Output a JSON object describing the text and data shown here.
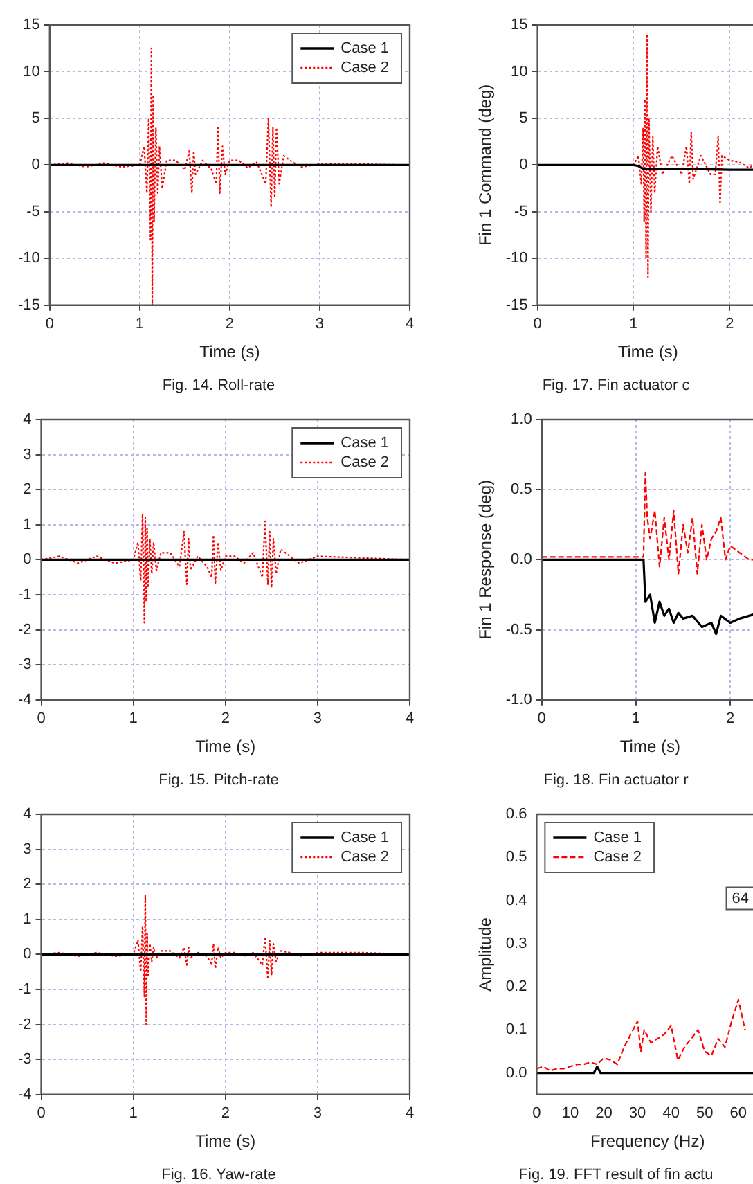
{
  "chart_data": [
    {
      "type": "line",
      "xlim": [
        0,
        4
      ],
      "xticks": [
        0,
        1,
        2,
        3,
        4
      ],
      "ylim": [
        -15,
        15
      ],
      "yticks": [
        -15,
        -10,
        -5,
        0,
        5,
        10,
        15
      ],
      "xlabel": "Time (s)",
      "grid": true,
      "legend": "top right",
      "annotations": [
        "Fig. 14. Roll-rate"
      ],
      "series": [
        {
          "name": "Case 1",
          "color": "#000000",
          "line_style": "solid",
          "x": [
            0,
            0.5,
            1,
            1.5,
            2,
            2.5,
            3,
            3.5,
            4
          ],
          "values": [
            0,
            0,
            0,
            0,
            0,
            0,
            0,
            0,
            0
          ]
        },
        {
          "name": "Case 2",
          "color": "#ff0000",
          "line_style": "dotted",
          "x": [
            0,
            0.2,
            0.4,
            0.6,
            0.8,
            1.0,
            1.05,
            1.08,
            1.1,
            1.12,
            1.13,
            1.14,
            1.15,
            1.16,
            1.18,
            1.2,
            1.22,
            1.25,
            1.3,
            1.4,
            1.5,
            1.55,
            1.58,
            1.6,
            1.62,
            1.7,
            1.8,
            1.85,
            1.87,
            1.89,
            1.92,
            1.95,
            2.0,
            2.1,
            2.2,
            2.3,
            2.4,
            2.43,
            2.46,
            2.48,
            2.5,
            2.52,
            2.55,
            2.6,
            2.7,
            2.8,
            3.0,
            3.5,
            4.0
          ],
          "values": [
            0,
            0.2,
            -0.2,
            0.2,
            -0.2,
            0,
            2,
            -3,
            5,
            -8,
            12.5,
            -15,
            7.5,
            -6,
            4,
            -3,
            2,
            -2.5,
            0.5,
            0.5,
            -0.5,
            1.5,
            -3,
            1.5,
            -1,
            0.5,
            -0.5,
            -2,
            4,
            -3,
            2,
            -1,
            0.5,
            0.5,
            -0.3,
            0.3,
            -2,
            5,
            -4.5,
            4,
            -3.5,
            4,
            -2,
            1,
            0.3,
            -0.2,
            0.1,
            0.1,
            0
          ]
        }
      ]
    },
    {
      "type": "line",
      "xlim": [
        0,
        4
      ],
      "xticks": [
        0,
        1,
        2,
        3,
        4
      ],
      "ylim": [
        -4,
        4
      ],
      "yticks": [
        -4,
        -3,
        -2,
        -1,
        0,
        1,
        2,
        3,
        4
      ],
      "xlabel": "Time (s)",
      "grid": true,
      "legend": "top right",
      "annotations": [
        "Fig. 15. Pitch-rate"
      ],
      "series": [
        {
          "name": "Case 1",
          "color": "#000000",
          "line_style": "solid",
          "x": [
            0,
            0.5,
            1,
            1.5,
            2,
            2.5,
            3,
            3.5,
            4
          ],
          "values": [
            0,
            0,
            0,
            0,
            0,
            0,
            0,
            0,
            0
          ]
        },
        {
          "name": "Case 2",
          "color": "#ff0000",
          "line_style": "dotted",
          "x": [
            0,
            0.2,
            0.4,
            0.6,
            0.8,
            1.0,
            1.05,
            1.08,
            1.1,
            1.12,
            1.13,
            1.14,
            1.15,
            1.16,
            1.18,
            1.2,
            1.22,
            1.25,
            1.3,
            1.4,
            1.5,
            1.55,
            1.58,
            1.6,
            1.62,
            1.7,
            1.8,
            1.85,
            1.87,
            1.89,
            1.92,
            1.95,
            2.0,
            2.1,
            2.2,
            2.3,
            2.4,
            2.43,
            2.46,
            2.48,
            2.5,
            2.52,
            2.55,
            2.6,
            2.7,
            2.8,
            3.0,
            3.5,
            4.0
          ],
          "values": [
            0,
            0.1,
            -0.1,
            0.1,
            -0.1,
            0,
            0.5,
            -0.6,
            1.3,
            -1.8,
            1.2,
            -1.2,
            0.9,
            -0.8,
            0.6,
            -0.4,
            0.5,
            -0.3,
            0.2,
            0.2,
            -0.2,
            0.8,
            -0.7,
            0.6,
            -0.3,
            0.1,
            -0.2,
            -0.5,
            0.7,
            -0.7,
            0.5,
            -0.3,
            0.1,
            0.1,
            -0.1,
            0.2,
            -0.5,
            1.1,
            -0.7,
            0.8,
            -0.8,
            0.6,
            -0.4,
            0.3,
            0.1,
            -0.1,
            0.1,
            0.05,
            0
          ]
        }
      ]
    },
    {
      "type": "line",
      "xlim": [
        0,
        4
      ],
      "xticks": [
        0,
        1,
        2,
        3,
        4
      ],
      "ylim": [
        -4,
        4
      ],
      "yticks": [
        -4,
        -3,
        -2,
        -1,
        0,
        1,
        2,
        3,
        4
      ],
      "xlabel": "Time (s)",
      "grid": true,
      "legend": "top right",
      "annotations": [
        "Fig. 16. Yaw-rate"
      ],
      "series": [
        {
          "name": "Case 1",
          "color": "#000000",
          "line_style": "solid",
          "x": [
            0,
            0.5,
            1,
            1.5,
            2,
            2.5,
            3,
            3.5,
            4
          ],
          "values": [
            0,
            0,
            0,
            0,
            0,
            0,
            0,
            0,
            0
          ]
        },
        {
          "name": "Case 2",
          "color": "#ff0000",
          "line_style": "dotted",
          "x": [
            0,
            0.2,
            0.4,
            0.6,
            0.8,
            1.0,
            1.05,
            1.08,
            1.1,
            1.12,
            1.13,
            1.14,
            1.15,
            1.16,
            1.18,
            1.2,
            1.22,
            1.25,
            1.3,
            1.4,
            1.5,
            1.55,
            1.58,
            1.6,
            1.62,
            1.7,
            1.8,
            1.85,
            1.87,
            1.89,
            1.92,
            1.95,
            2.0,
            2.1,
            2.2,
            2.3,
            2.4,
            2.43,
            2.46,
            2.48,
            2.5,
            2.52,
            2.55,
            2.6,
            2.7,
            2.8,
            3.0,
            3.5,
            4.0
          ],
          "values": [
            0,
            0.05,
            -0.05,
            0.05,
            -0.05,
            0,
            0.4,
            -0.5,
            0.8,
            -1.2,
            1.7,
            -2,
            0.6,
            -0.6,
            0.3,
            -0.2,
            0.2,
            -0.1,
            0.1,
            0.1,
            -0.1,
            0.2,
            -0.3,
            0.2,
            -0.1,
            0.05,
            -0.05,
            -0.3,
            0.3,
            -0.4,
            0.2,
            -0.1,
            0.05,
            0.05,
            -0.05,
            0.05,
            -0.3,
            0.5,
            -0.7,
            0.4,
            -0.6,
            0.3,
            -0.2,
            0.1,
            0.05,
            -0.05,
            0.05,
            0.05,
            0
          ]
        }
      ]
    },
    {
      "type": "line",
      "xlim": [
        0,
        2.3
      ],
      "xticks": [
        0,
        1,
        2
      ],
      "ylim": [
        -15,
        15
      ],
      "yticks": [
        -15,
        -10,
        -5,
        0,
        5,
        10,
        15
      ],
      "xlabel": "Time (s)",
      "ylabel": "Fin 1 Command (deg)",
      "grid": true,
      "annotations": [
        "Fig. 17. Fin actuator c"
      ],
      "series": [
        {
          "color": "#000000",
          "line_style": "solid",
          "x": [
            0,
            0.5,
            1,
            1.05,
            1.1,
            1.2,
            1.5,
            2,
            2.3
          ],
          "values": [
            0,
            0,
            0,
            -0.1,
            -0.4,
            -0.4,
            -0.4,
            -0.5,
            -0.5
          ]
        },
        {
          "color": "#ff0000",
          "line_style": "dotted",
          "x": [
            0,
            0.5,
            1,
            1.05,
            1.08,
            1.1,
            1.11,
            1.12,
            1.13,
            1.14,
            1.15,
            1.16,
            1.18,
            1.2,
            1.22,
            1.25,
            1.3,
            1.4,
            1.5,
            1.55,
            1.58,
            1.6,
            1.62,
            1.7,
            1.8,
            1.85,
            1.88,
            1.9,
            1.92,
            2.0,
            2.1,
            2.2,
            2.3
          ],
          "values": [
            0,
            0,
            0,
            1,
            -2,
            4,
            -6,
            7,
            -10,
            14,
            -12,
            5,
            -5,
            3,
            -3,
            2,
            -1,
            1,
            -1,
            2,
            -2,
            3.5,
            -1.5,
            1,
            -1,
            -1,
            3,
            -4,
            1,
            0.5,
            0.3,
            -0.3,
            0.3
          ]
        }
      ]
    },
    {
      "type": "line",
      "xlim": [
        0,
        2.3
      ],
      "xticks": [
        0,
        1,
        2
      ],
      "ylim": [
        -1,
        1
      ],
      "yticks": [
        {
          "value": -1,
          "label": "-1.0"
        },
        {
          "value": -0.5,
          "label": "-0.5"
        },
        {
          "value": 0,
          "label": "0.0"
        },
        {
          "value": 0.5,
          "label": "0.5"
        },
        {
          "value": 1,
          "label": "1.0"
        }
      ],
      "xlabel": "Time (s)",
      "ylabel": "Fin 1 Response (deg)",
      "grid": true,
      "annotations": [
        "Fig. 18. Fin actuator r"
      ],
      "series": [
        {
          "color": "#000000",
          "line_style": "solid",
          "x": [
            0,
            0.5,
            1,
            1.08,
            1.1,
            1.15,
            1.2,
            1.25,
            1.3,
            1.35,
            1.4,
            1.45,
            1.5,
            1.6,
            1.7,
            1.8,
            1.85,
            1.9,
            2.0,
            2.1,
            2.2,
            2.3
          ],
          "values": [
            0,
            0,
            0,
            0,
            -0.3,
            -0.25,
            -0.45,
            -0.3,
            -0.4,
            -0.35,
            -0.45,
            -0.38,
            -0.42,
            -0.4,
            -0.48,
            -0.45,
            -0.53,
            -0.4,
            -0.45,
            -0.42,
            -0.4,
            -0.38
          ]
        },
        {
          "color": "#ff0000",
          "line_style": "dashed",
          "x": [
            0,
            0.5,
            1,
            1.08,
            1.1,
            1.12,
            1.15,
            1.2,
            1.25,
            1.3,
            1.35,
            1.4,
            1.45,
            1.5,
            1.55,
            1.6,
            1.65,
            1.7,
            1.75,
            1.8,
            1.85,
            1.9,
            1.95,
            2.0,
            2.1,
            2.2,
            2.3
          ],
          "values": [
            0.02,
            0.02,
            0.02,
            0.02,
            0.62,
            0.3,
            0.15,
            0.35,
            -0.05,
            0.3,
            0.0,
            0.35,
            -0.1,
            0.25,
            0.05,
            0.3,
            -0.1,
            0.25,
            0.0,
            0.15,
            0.2,
            0.3,
            0.0,
            0.1,
            0.05,
            0.0,
            0.0
          ]
        }
      ]
    },
    {
      "type": "line",
      "xlim": [
        0,
        66
      ],
      "xticks": [
        0,
        10,
        20,
        30,
        40,
        50,
        60
      ],
      "ylim": [
        -0.05,
        0.6
      ],
      "yticks": [
        {
          "value": 0,
          "label": "0.0"
        },
        {
          "value": 0.1,
          "label": "0.1"
        },
        {
          "value": 0.2,
          "label": "0.2"
        },
        {
          "value": 0.3,
          "label": "0.3"
        },
        {
          "value": 0.4,
          "label": "0.4"
        },
        {
          "value": 0.5,
          "label": "0.5"
        },
        {
          "value": 0.6,
          "label": "0.6"
        }
      ],
      "xlabel": "Frequency (Hz)",
      "ylabel": "Amplitude",
      "grid": false,
      "legend": "top left",
      "annotations": [
        "Fig. 19. FFT result of fin actu",
        "64"
      ],
      "series": [
        {
          "name": "Case 1",
          "color": "#000000",
          "line_style": "solid",
          "x": [
            0,
            10,
            17,
            18,
            19,
            20,
            30,
            40,
            50,
            60,
            66
          ],
          "values": [
            0,
            0,
            0,
            0.015,
            0,
            0,
            0,
            0,
            0,
            0,
            0
          ]
        },
        {
          "name": "Case 2",
          "color": "#ff0000",
          "line_style": "dashed",
          "x": [
            0,
            2,
            4,
            6,
            8,
            10,
            12,
            14,
            16,
            18,
            20,
            22,
            24,
            26,
            28,
            30,
            31,
            32,
            34,
            36,
            38,
            40,
            42,
            44,
            46,
            48,
            50,
            52,
            54,
            56,
            58,
            60,
            62
          ],
          "values": [
            0.01,
            0.015,
            0.005,
            0.01,
            0.01,
            0.015,
            0.02,
            0.02,
            0.025,
            0.02,
            0.035,
            0.03,
            0.02,
            0.06,
            0.09,
            0.12,
            0.05,
            0.1,
            0.07,
            0.08,
            0.09,
            0.11,
            0.03,
            0.06,
            0.08,
            0.1,
            0.05,
            0.04,
            0.08,
            0.06,
            0.12,
            0.17,
            0.1
          ]
        }
      ]
    }
  ]
}
